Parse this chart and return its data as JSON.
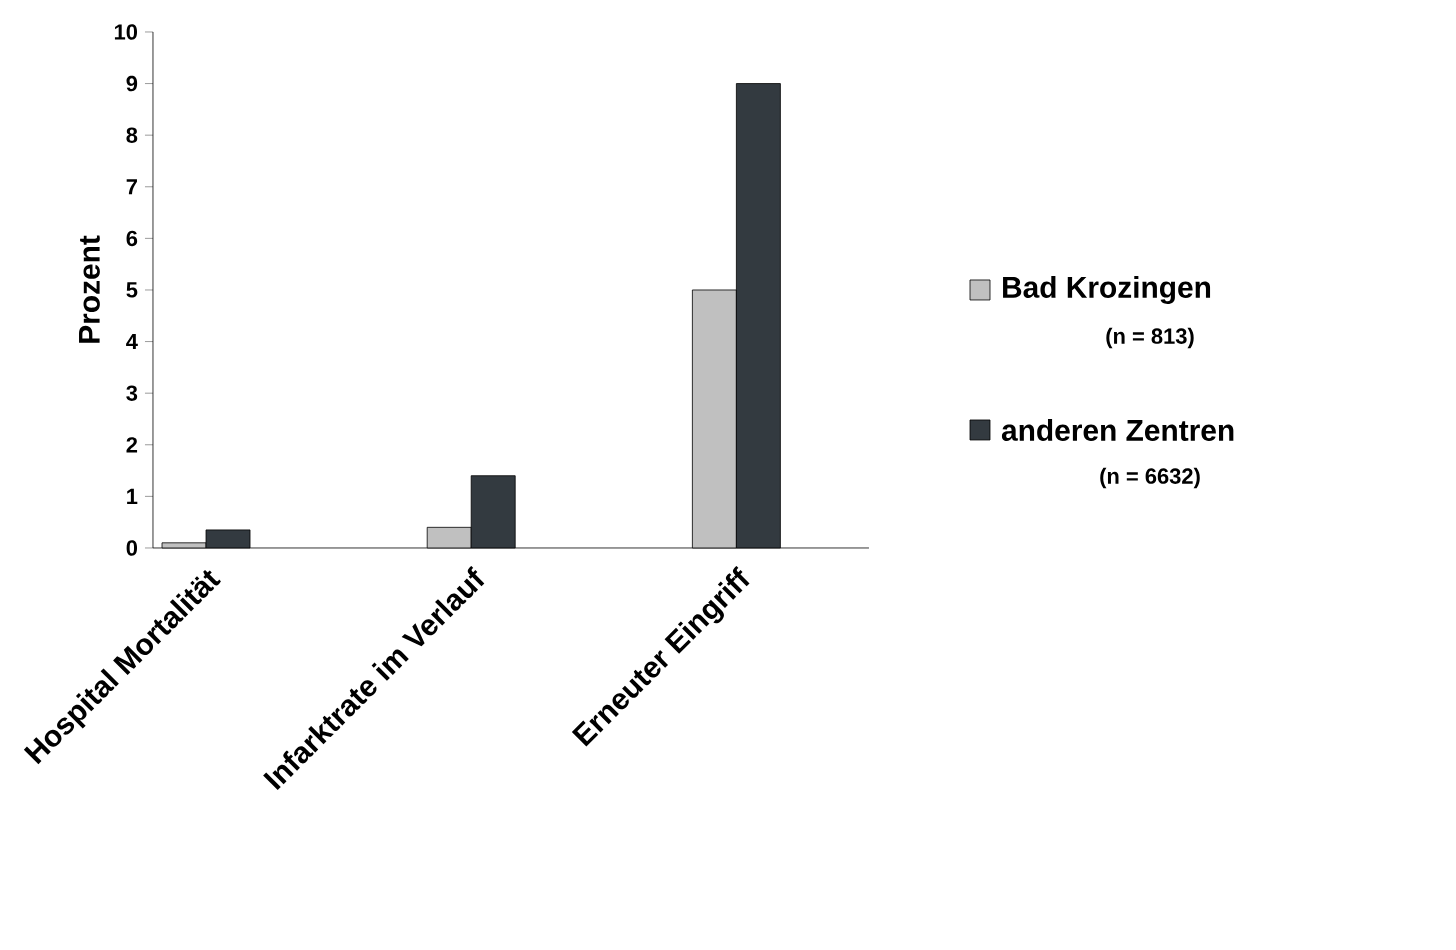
{
  "chart_data": {
    "type": "bar",
    "ylabel": "Prozent",
    "categories": [
      "Hospital Mortalität",
      "Infarktrate im Verlauf",
      "Erneuter Eingriff"
    ],
    "series": [
      {
        "name": "Bad Krozingen",
        "color": "#c0c0c0",
        "values": [
          0.1,
          0.4,
          5
        ]
      },
      {
        "name": "anderen Zentren",
        "color": "#333a40",
        "values": [
          0.35,
          1.4,
          9
        ]
      }
    ],
    "annotations": [
      "(n = 813)",
      "(n = 6632)"
    ],
    "ylim": [
      0,
      10
    ],
    "yticks": [
      0,
      1,
      2,
      3,
      4,
      5,
      6,
      7,
      8,
      9,
      10
    ],
    "legend": "right",
    "grid": false
  }
}
